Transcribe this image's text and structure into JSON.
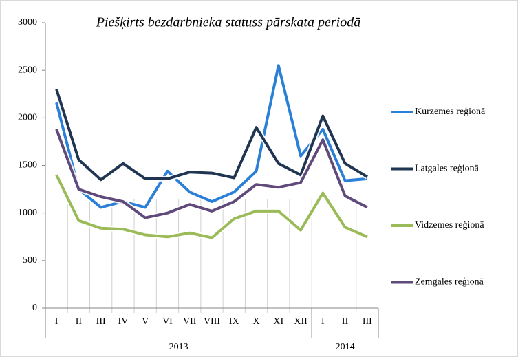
{
  "chart_data": {
    "type": "line",
    "title": "Piešķirts bezdarbnieka statuss pārskata periodā",
    "category_groups": [
      {
        "name": "2013",
        "categories": [
          "I",
          "II",
          "III",
          "IV",
          "V",
          "VI",
          "VII",
          "VIII",
          "IX",
          "X",
          "XI",
          "XII"
        ]
      },
      {
        "name": "2014",
        "categories": [
          "I",
          "II",
          "III"
        ]
      }
    ],
    "series": [
      {
        "name": "Kurzemes reģionā",
        "color": "#2b7fd6",
        "values": [
          2160,
          1250,
          1060,
          1120,
          1060,
          1440,
          1220,
          1120,
          1220,
          1440,
          2550,
          1600,
          1880,
          1340,
          1360
        ]
      },
      {
        "name": "Latgales reģionā",
        "color": "#1f3552",
        "values": [
          2300,
          1560,
          1350,
          1520,
          1360,
          1360,
          1430,
          1420,
          1370,
          1900,
          1520,
          1400,
          2020,
          1520,
          1380
        ]
      },
      {
        "name": "Vidzemes reģionā",
        "color": "#9bbb59",
        "values": [
          1400,
          920,
          840,
          830,
          770,
          750,
          790,
          740,
          940,
          1020,
          1020,
          820,
          1210,
          850,
          750
        ]
      },
      {
        "name": "Zemgales reģionā",
        "color": "#604a7b",
        "values": [
          1880,
          1250,
          1170,
          1120,
          950,
          1000,
          1090,
          1020,
          1120,
          1300,
          1270,
          1320,
          1770,
          1180,
          1060
        ]
      }
    ],
    "ylim": [
      0,
      3000
    ],
    "yticks": [
      0,
      500,
      1000,
      1500,
      2000,
      2500,
      3000
    ],
    "legend": "right"
  }
}
